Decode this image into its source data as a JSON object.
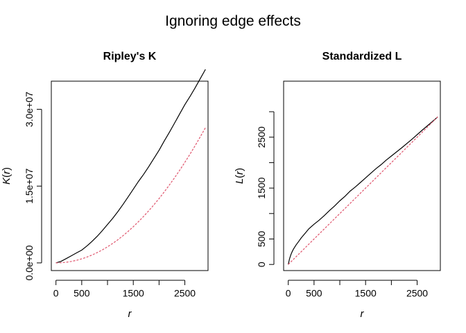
{
  "figure_title": "Ignoring edge effects",
  "colors": {
    "observed": "#000000",
    "theoretical": "#DF536B",
    "axis": "#000000"
  },
  "chart_data": [
    {
      "type": "line",
      "title": "Ripley's K",
      "xlabel": "r",
      "ylabel_func": "K",
      "ylabel_arg": "r",
      "xlim": [
        -90,
        2950
      ],
      "ylim": [
        -1500000.0,
        35500000.0
      ],
      "x_ticks": [
        0,
        500,
        1000,
        1500,
        2000,
        2500
      ],
      "x_tick_labels": [
        "0",
        "500",
        "",
        "1500",
        "",
        "2500"
      ],
      "y_ticks": [
        0,
        15000000,
        30000000
      ],
      "y_tick_labels": [
        "0.0e+00",
        "1.5e+07",
        "3.0e+07"
      ],
      "grid": false,
      "series": [
        {
          "style": "solid",
          "color": "#000000",
          "x": [
            0,
            100,
            200,
            300,
            400,
            500,
            600,
            700,
            800,
            900,
            1000,
            1100,
            1200,
            1300,
            1400,
            1500,
            1600,
            1700,
            1800,
            1900,
            2000,
            2100,
            2200,
            2300,
            2400,
            2500,
            2600,
            2700,
            2800,
            2900
          ],
          "y": [
            0,
            300000,
            850000,
            1400000,
            1950000,
            2500000,
            3300000,
            4200000,
            5200000,
            6300000,
            7500000,
            8700000,
            10000000,
            11400000,
            12900000,
            14400000,
            15900000,
            17300000,
            18800000,
            20400000,
            22000000,
            23800000,
            25500000,
            27300000,
            29100000,
            30900000,
            32500000,
            34200000,
            36000000,
            37800000
          ]
        },
        {
          "style": "dashed",
          "color": "#DF536B",
          "x": [
            0,
            100,
            200,
            300,
            400,
            500,
            600,
            700,
            800,
            900,
            1000,
            1100,
            1200,
            1300,
            1400,
            1500,
            1600,
            1700,
            1800,
            1900,
            2000,
            2100,
            2200,
            2300,
            2400,
            2500,
            2600,
            2700,
            2800,
            2900
          ],
          "y": [
            0,
            31400,
            125700,
            282700,
            502700,
            785400,
            1131000,
            1539400,
            2010600,
            2544700,
            3141600,
            3801300,
            4523900,
            5309300,
            6157500,
            7068600,
            8042500,
            9079200,
            10178800,
            11341200,
            12566400,
            13854400,
            15205300,
            16619100,
            18095600,
            19635000,
            21237200,
            22902200,
            24630100,
            26420700
          ]
        }
      ]
    },
    {
      "type": "line",
      "title": "Standardized L",
      "xlabel": "r",
      "ylabel_func": "L",
      "ylabel_arg": "r",
      "xlim": [
        -90,
        2950
      ],
      "ylim": [
        -120,
        3600
      ],
      "x_ticks": [
        0,
        500,
        1000,
        1500,
        2000,
        2500
      ],
      "x_tick_labels": [
        "0",
        "500",
        "",
        "1500",
        "",
        "2500"
      ],
      "y_ticks": [
        0,
        500,
        1000,
        1500,
        2000,
        2500,
        3000
      ],
      "y_tick_labels": [
        "0",
        "500",
        "",
        "1500",
        "",
        "2500",
        ""
      ],
      "grid": false,
      "series": [
        {
          "style": "solid",
          "color": "#000000",
          "x": [
            0,
            25,
            50,
            75,
            100,
            150,
            200,
            250,
            300,
            350,
            400,
            500,
            600,
            700,
            800,
            900,
            1000,
            1100,
            1200,
            1300,
            1400,
            1500,
            1600,
            1700,
            1800,
            1900,
            2000,
            2200,
            2400,
            2600,
            2800,
            2900
          ],
          "y": [
            0,
            110,
            190,
            250,
            300,
            380,
            450,
            520,
            580,
            640,
            700,
            790,
            870,
            960,
            1060,
            1150,
            1250,
            1340,
            1440,
            1520,
            1610,
            1700,
            1790,
            1880,
            1960,
            2050,
            2130,
            2290,
            2460,
            2640,
            2810,
            2900
          ]
        },
        {
          "style": "dashed",
          "color": "#DF536B",
          "x": [
            0,
            2900
          ],
          "y": [
            0,
            2900
          ]
        }
      ]
    }
  ]
}
